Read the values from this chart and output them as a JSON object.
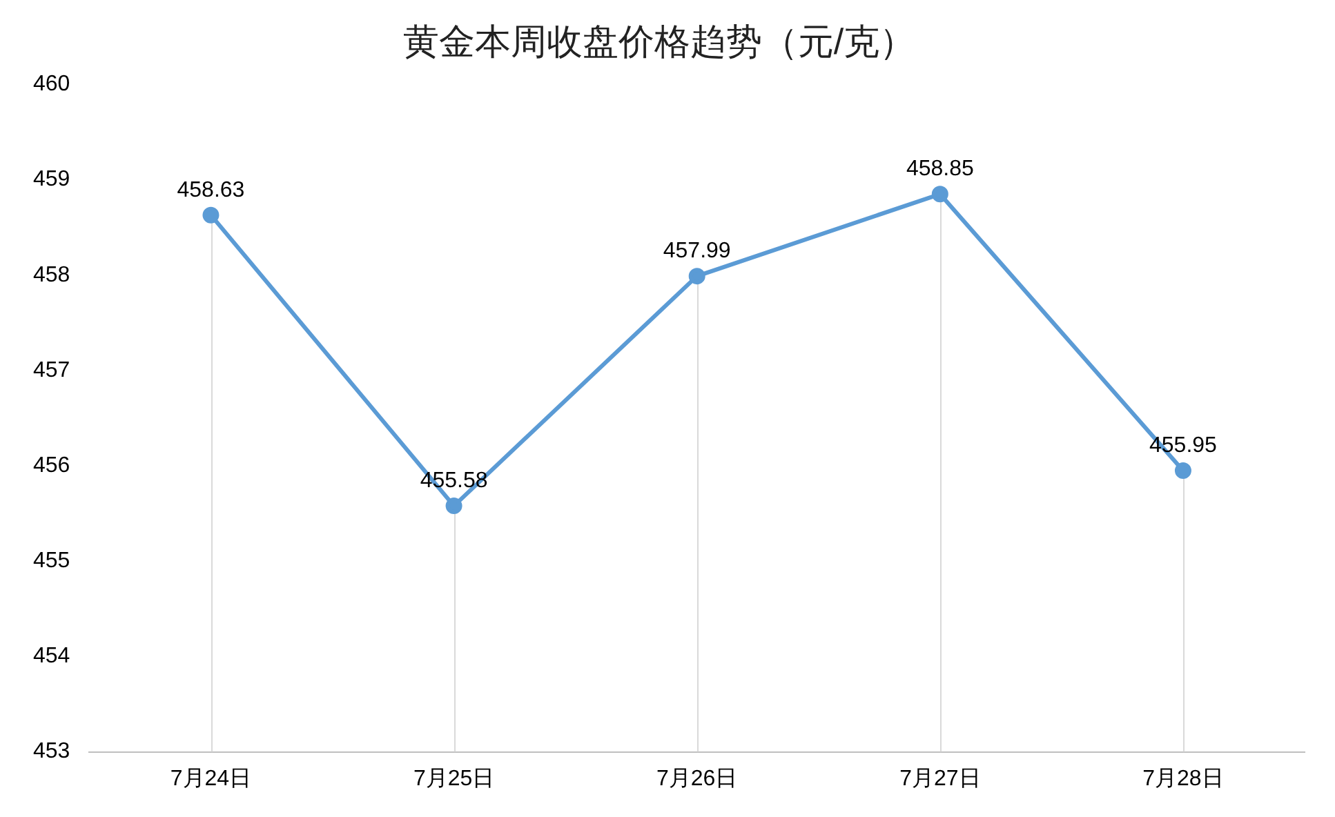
{
  "chart_data": {
    "type": "line",
    "title": "黄金本周收盘价格趋势（元/克）",
    "categories": [
      "7月24日",
      "7月25日",
      "7月26日",
      "7月27日",
      "7月28日"
    ],
    "series": [
      {
        "color": "#5b9bd5",
        "values": [
          458.63,
          455.58,
          457.99,
          458.85,
          455.95
        ]
      }
    ],
    "ylim": [
      453,
      460
    ],
    "yticks": [
      453,
      454,
      455,
      456,
      457,
      458,
      459,
      460
    ],
    "grid": "x",
    "legend": false,
    "marker": "circle",
    "line_style": "solid",
    "data_labels": true
  }
}
